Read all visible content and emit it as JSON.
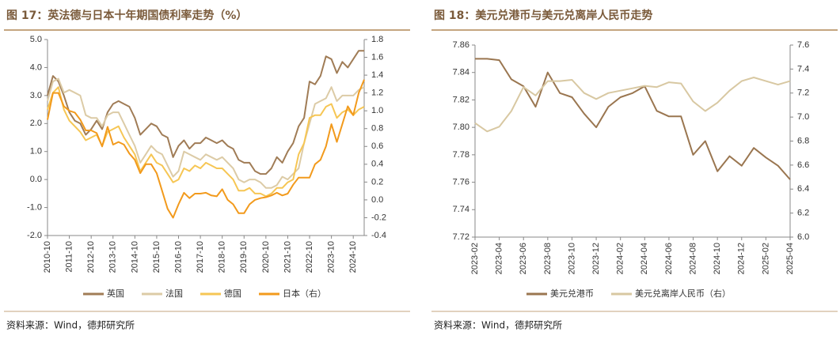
{
  "chart_data": [
    {
      "type": "line",
      "title": "图 17：英法德与日本十年期国债利率走势（%）",
      "source": "资料来源：Wind，德邦研究所",
      "x": [
        "2010-10",
        "2011-01",
        "2011-04",
        "2011-07",
        "2011-10",
        "2012-01",
        "2012-04",
        "2012-07",
        "2012-10",
        "2013-01",
        "2013-04",
        "2013-07",
        "2013-10",
        "2014-01",
        "2014-04",
        "2014-07",
        "2014-10",
        "2015-01",
        "2015-04",
        "2015-07",
        "2015-10",
        "2016-01",
        "2016-04",
        "2016-07",
        "2016-10",
        "2017-01",
        "2017-04",
        "2017-07",
        "2017-10",
        "2018-01",
        "2018-04",
        "2018-07",
        "2018-10",
        "2019-01",
        "2019-04",
        "2019-07",
        "2019-10",
        "2020-01",
        "2020-04",
        "2020-07",
        "2020-10",
        "2021-01",
        "2021-04",
        "2021-07",
        "2021-10",
        "2022-01",
        "2022-04",
        "2022-07",
        "2022-10",
        "2023-01",
        "2023-04",
        "2023-07",
        "2023-10",
        "2024-01",
        "2024-04",
        "2024-07",
        "2024-10",
        "2025-01",
        "2025-04"
      ],
      "xticks": [
        "2010-10",
        "2011-10",
        "2012-10",
        "2013-10",
        "2014-10",
        "2015-10",
        "2016-10",
        "2017-10",
        "2018-10",
        "2019-10",
        "2020-10",
        "2021-10",
        "2022-10",
        "2023-10",
        "2024-10"
      ],
      "ylim": [
        -2,
        5
      ],
      "yticks": [
        {
          "value": -2,
          "label": "-2.0"
        },
        {
          "value": -1,
          "label": "-1.0"
        },
        {
          "value": 0,
          "label": "0.0"
        },
        {
          "value": 1,
          "label": "1.0"
        },
        {
          "value": 2,
          "label": "2.0"
        },
        {
          "value": 3,
          "label": "3.0"
        },
        {
          "value": 4,
          "label": "4.0"
        },
        {
          "value": 5,
          "label": "5.0"
        }
      ],
      "y2lim": [
        -0.4,
        1.8
      ],
      "y2ticks": [
        -0.4,
        -0.2,
        {
          "value": 0,
          "label": "0.0"
        },
        0.2,
        0.4,
        0.6,
        0.8,
        {
          "value": 1,
          "label": "1.0"
        },
        1.2,
        1.4,
        1.6,
        1.8
      ],
      "series": [
        {
          "name": "英国",
          "color": "#a07c56",
          "values": [
            3.0,
            3.7,
            3.5,
            3.0,
            2.4,
            2.1,
            2.0,
            1.6,
            1.8,
            2.1,
            1.8,
            2.4,
            2.7,
            2.8,
            2.7,
            2.6,
            2.2,
            1.6,
            1.8,
            2.0,
            1.9,
            1.6,
            1.5,
            0.8,
            1.2,
            1.4,
            1.1,
            1.3,
            1.3,
            1.5,
            1.4,
            1.3,
            1.4,
            1.2,
            1.1,
            0.7,
            0.6,
            0.6,
            0.3,
            0.2,
            0.2,
            0.4,
            0.8,
            0.6,
            1.0,
            1.3,
            1.9,
            2.2,
            3.5,
            3.4,
            3.7,
            4.4,
            4.3,
            3.8,
            4.2,
            4.0,
            4.3,
            4.6,
            4.6
          ]
        },
        {
          "name": "法国",
          "color": "#dccba6",
          "values": [
            2.8,
            3.5,
            3.6,
            3.1,
            3.2,
            3.1,
            3.0,
            2.3,
            2.2,
            2.2,
            1.9,
            2.3,
            2.4,
            2.4,
            2.0,
            1.6,
            1.2,
            0.6,
            0.9,
            1.2,
            1.0,
            0.9,
            0.5,
            0.1,
            0.3,
            1.0,
            0.9,
            0.8,
            0.7,
            0.9,
            0.8,
            0.7,
            0.8,
            0.6,
            0.4,
            0.0,
            -0.1,
            0.0,
            0.0,
            -0.1,
            -0.3,
            -0.3,
            -0.2,
            0.1,
            0.0,
            0.2,
            0.4,
            1.3,
            2.0,
            2.7,
            2.8,
            2.9,
            3.3,
            2.8,
            3.0,
            3.0,
            3.0,
            3.2,
            3.3
          ]
        },
        {
          "name": "德国",
          "color": "#f6c654",
          "values": [
            2.5,
            3.1,
            3.3,
            2.5,
            2.1,
            1.9,
            1.7,
            1.4,
            1.5,
            1.6,
            1.2,
            1.7,
            1.8,
            1.9,
            1.5,
            1.2,
            0.9,
            0.3,
            0.6,
            0.9,
            0.6,
            0.5,
            0.2,
            -0.1,
            0.0,
            0.4,
            0.3,
            0.5,
            0.4,
            0.6,
            0.5,
            0.4,
            0.4,
            0.2,
            0.0,
            -0.4,
            -0.4,
            -0.3,
            -0.5,
            -0.5,
            -0.6,
            -0.5,
            -0.3,
            -0.3,
            -0.1,
            0.0,
            0.9,
            1.3,
            2.2,
            2.3,
            2.3,
            2.6,
            2.7,
            2.2,
            2.4,
            2.5,
            2.3,
            2.5,
            2.6
          ]
        },
        {
          "name": "日本（右）",
          "color": "#f29a1c",
          "axis": "y2",
          "values": [
            0.9,
            1.2,
            1.2,
            1.05,
            1.0,
            0.98,
            0.9,
            0.78,
            0.78,
            0.75,
            0.6,
            0.82,
            0.62,
            0.65,
            0.62,
            0.52,
            0.45,
            0.3,
            0.4,
            0.4,
            0.3,
            0.1,
            -0.1,
            -0.2,
            -0.05,
            0.08,
            0.02,
            0.07,
            0.07,
            0.08,
            0.05,
            0.04,
            0.12,
            0.0,
            -0.05,
            -0.15,
            -0.15,
            -0.05,
            0.0,
            0.02,
            0.03,
            0.05,
            0.08,
            0.05,
            0.07,
            0.17,
            0.25,
            0.25,
            0.25,
            0.4,
            0.45,
            0.6,
            0.85,
            0.65,
            0.85,
            1.05,
            0.95,
            1.2,
            1.35
          ]
        }
      ]
    },
    {
      "type": "line",
      "title": "图 18：美元兑港币与美元兑离岸人民币走势",
      "source": "资料来源：Wind，德邦研究所",
      "x": [
        "2023-02",
        "2023-03",
        "2023-04",
        "2023-05",
        "2023-06",
        "2023-07",
        "2023-08",
        "2023-09",
        "2023-10",
        "2023-11",
        "2023-12",
        "2024-01",
        "2024-02",
        "2024-03",
        "2024-04",
        "2024-05",
        "2024-06",
        "2024-07",
        "2024-08",
        "2024-09",
        "2024-10",
        "2024-11",
        "2024-12",
        "2025-01",
        "2025-02",
        "2025-03",
        "2025-04"
      ],
      "xticks": [
        "2023-02",
        "2023-04",
        "2023-06",
        "2023-08",
        "2023-10",
        "2023-12",
        "2024-02",
        "2024-04",
        "2024-06",
        "2024-08",
        "2024-10",
        "2024-12",
        "2025-02",
        "2025-04"
      ],
      "ylim": [
        7.72,
        7.86
      ],
      "yticks": [
        7.72,
        7.74,
        7.76,
        7.78,
        {
          "value": 7.8,
          "label": "7.80"
        },
        7.82,
        7.84,
        7.86
      ],
      "y2lim": [
        6.0,
        7.6
      ],
      "y2ticks": [
        {
          "value": 6,
          "label": "6.0"
        },
        6.2,
        6.4,
        6.6,
        6.8,
        {
          "value": 7,
          "label": "7.0"
        },
        7.2,
        7.4,
        7.6
      ],
      "series": [
        {
          "name": "美元兑港币",
          "color": "#9a7650",
          "values": [
            7.85,
            7.85,
            7.849,
            7.835,
            7.83,
            7.815,
            7.84,
            7.825,
            7.822,
            7.81,
            7.8,
            7.815,
            7.822,
            7.825,
            7.83,
            7.812,
            7.808,
            7.808,
            7.78,
            7.79,
            7.768,
            7.779,
            7.772,
            7.785,
            7.778,
            7.772,
            7.762
          ]
        },
        {
          "name": "美元兑离岸人民币（右）",
          "color": "#d8c8a2",
          "axis": "y2",
          "values": [
            6.95,
            6.88,
            6.92,
            7.05,
            7.25,
            7.18,
            7.3,
            7.3,
            7.31,
            7.2,
            7.15,
            7.2,
            7.22,
            7.24,
            7.26,
            7.25,
            7.29,
            7.28,
            7.13,
            7.05,
            7.12,
            7.22,
            7.3,
            7.33,
            7.3,
            7.27,
            7.3
          ]
        }
      ]
    }
  ]
}
